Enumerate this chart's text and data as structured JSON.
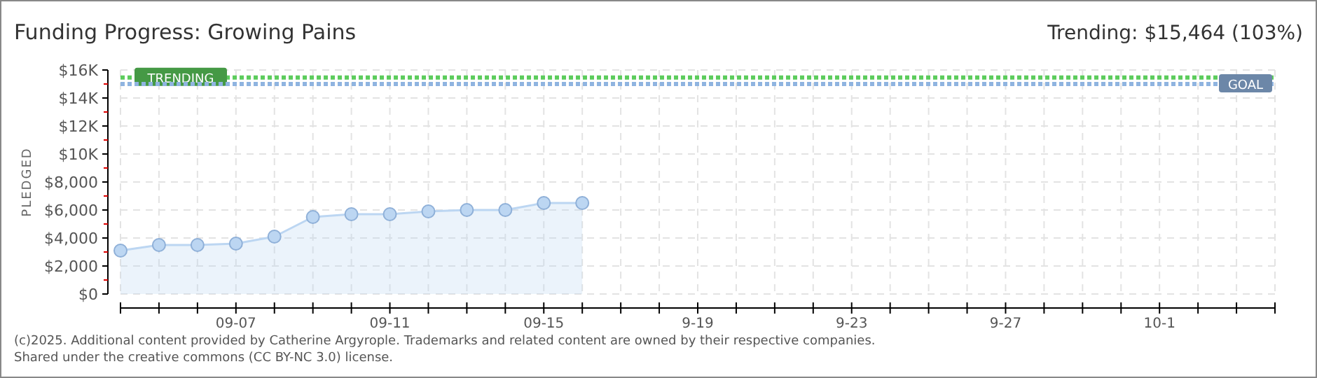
{
  "chart_data": {
    "type": "area",
    "title": "Funding Progress: Growing Pains",
    "subtitle": "Trending: $15,464 (103%)",
    "ylabel": "PLEDGED",
    "x": [
      "--09-04",
      "--09-05",
      "--09-06",
      "--09-07",
      "--09-08",
      "--09-09",
      "--09-10",
      "--09-11",
      "--09-12",
      "--09-13",
      "--09-14",
      "--09-15",
      "--09-16"
    ],
    "series": [
      {
        "color": "#bcd6f2",
        "values": [
          3100,
          3500,
          3500,
          3600,
          4100,
          5500,
          5700,
          5700,
          5900,
          6000,
          6000,
          6500,
          6500
        ]
      }
    ],
    "xlim": [
      "--09-04",
      "--10-04"
    ],
    "xticks": [
      {
        "value": "--09-04",
        "label": null
      },
      {
        "value": "--09-05",
        "label": null
      },
      {
        "value": "--09-06",
        "label": null
      },
      {
        "value": "--09-07",
        "label": "09-07"
      },
      {
        "value": "--09-08",
        "label": null
      },
      {
        "value": "--09-09",
        "label": null
      },
      {
        "value": "--09-10",
        "label": null
      },
      {
        "value": "--09-11",
        "label": "09-11"
      },
      {
        "value": "--09-12",
        "label": null
      },
      {
        "value": "--09-13",
        "label": null
      },
      {
        "value": "--09-14",
        "label": null
      },
      {
        "value": "--09-15",
        "label": "09-15"
      },
      {
        "value": "--09-16",
        "label": null
      },
      {
        "value": "--09-17",
        "label": null
      },
      {
        "value": "--09-18",
        "label": null
      },
      {
        "value": "--09-19",
        "label": "9-19"
      },
      {
        "value": "--09-20",
        "label": null
      },
      {
        "value": "--09-21",
        "label": null
      },
      {
        "value": "--09-22",
        "label": null
      },
      {
        "value": "--09-23",
        "label": "9-23"
      },
      {
        "value": "--09-24",
        "label": null
      },
      {
        "value": "--09-25",
        "label": null
      },
      {
        "value": "--09-26",
        "label": null
      },
      {
        "value": "--09-27",
        "label": "9-27"
      },
      {
        "value": "--09-28",
        "label": null
      },
      {
        "value": "--09-29",
        "label": null
      },
      {
        "value": "--09-30",
        "label": null
      },
      {
        "value": "--10-01",
        "label": "10-1"
      },
      {
        "value": "--10-02",
        "label": null
      },
      {
        "value": "--10-03",
        "label": null
      },
      {
        "value": "--10-04",
        "label": null
      }
    ],
    "ylim": [
      0,
      16000
    ],
    "yticks": [
      {
        "value": 0,
        "label": "$0"
      },
      {
        "value": 1000,
        "label": null
      },
      {
        "value": 2000,
        "label": "$2,000"
      },
      {
        "value": 3000,
        "label": null
      },
      {
        "value": 4000,
        "label": "$4,000"
      },
      {
        "value": 5000,
        "label": null
      },
      {
        "value": 6000,
        "label": "$6,000"
      },
      {
        "value": 7000,
        "label": null
      },
      {
        "value": 8000,
        "label": "$8,000"
      },
      {
        "value": 9000,
        "label": null
      },
      {
        "value": 10000,
        "label": "$10K"
      },
      {
        "value": 11000,
        "label": null
      },
      {
        "value": 12000,
        "label": "$12K"
      },
      {
        "value": 13000,
        "label": null
      },
      {
        "value": 14000,
        "label": "$14K"
      },
      {
        "value": 15000,
        "label": null
      },
      {
        "value": 16000,
        "label": "$16K"
      }
    ],
    "ref_lines": [
      {
        "axis": "y",
        "value": 15464,
        "label": "TRENDING",
        "color": "#5ccc5c",
        "line_style": "dotted"
      },
      {
        "axis": "y",
        "value": 15000,
        "label": "GOAL",
        "color": "#8fb4e0",
        "line_style": "dotted"
      }
    ],
    "grid": true,
    "marker": "circle",
    "line_style": "solid",
    "annotations": [
      "(c)2025. Additional content provided by Catherine Argyrople. Trademarks and related content are owned by their respective companies.",
      "Shared under the creative commons (CC BY-NC 3.0) license."
    ]
  }
}
